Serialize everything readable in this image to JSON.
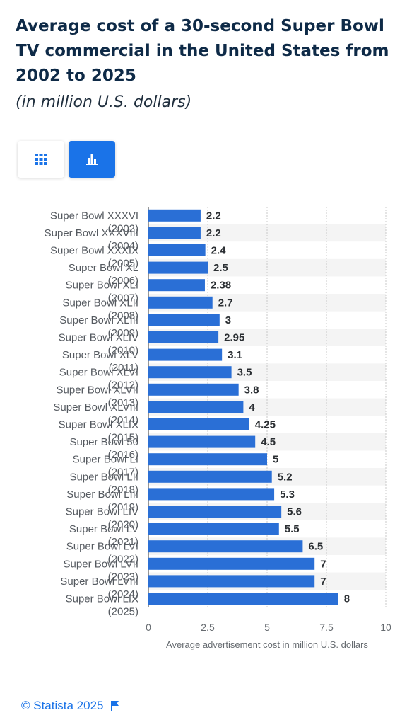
{
  "header": {
    "title": "Average cost of a 30-second Super Bowl TV commercial in the United States from 2002 to 2025",
    "subtitle": "(in million U.S. dollars)"
  },
  "view_toggle": {
    "table_icon": "table-grid-icon",
    "chart_icon": "bar-chart-icon",
    "active": "chart"
  },
  "colors": {
    "bar": "#2a6fd6",
    "accent": "#1a73e8",
    "title": "#0e2a47"
  },
  "footer": {
    "copyright": "© Statista 2025",
    "icon": "flag-icon"
  },
  "chart_data": {
    "type": "bar",
    "orientation": "horizontal",
    "categories": [
      "Super Bowl XXXVI (2002)",
      "Super Bowl XXXVIII (2004)",
      "Super Bowl XXXIX (2005)",
      "Super Bowl XL (2006)",
      "Super Bowl XLI (2007)",
      "Super Bowl XLII (2008)",
      "Super Bowl XLIII (2009)",
      "Super Bowl XLIV (2010)",
      "Super Bowl XLV (2011)",
      "Super Bowl XLVI (2012)",
      "Super Bowl XLVII (2013)",
      "Super Bowl XLVIII (2014)",
      "Super Bowl XLIX (2015)",
      "Super Bowl 50 (2016)",
      "Super Bowl LI (2017)",
      "Super Bowl LII (2018)",
      "Super Bowl LIII (2019)",
      "Super Bowl LIV (2020)",
      "Super Bowl LV (2021)",
      "Super Bowl LVI (2022)",
      "Super Bowl LVII (2023)",
      "Super Bowl LVIII (2024)",
      "Super Bowl LIX (2025)"
    ],
    "values": [
      2.2,
      2.2,
      2.4,
      2.5,
      2.38,
      2.7,
      3,
      2.95,
      3.1,
      3.5,
      3.8,
      4,
      4.25,
      4.5,
      5,
      5.2,
      5.3,
      5.6,
      5.5,
      6.5,
      7,
      7,
      8
    ],
    "value_labels": [
      "2.2",
      "2.2",
      "2.4",
      "2.5",
      "2.38",
      "2.7",
      "3",
      "2.95",
      "3.1",
      "3.5",
      "3.8",
      "4",
      "4.25",
      "4.5",
      "5",
      "5.2",
      "5.3",
      "5.6",
      "5.5",
      "6.5",
      "7",
      "7",
      "8"
    ],
    "xlabel": "Average advertisement cost in million U.S. dollars",
    "ylabel": "",
    "xlim": [
      0,
      10
    ],
    "ticks": [
      0,
      2.5,
      5,
      7.5,
      10
    ],
    "tick_labels": [
      "0",
      "2.5",
      "5",
      "7.5",
      "10"
    ],
    "grid": true,
    "legend": "none"
  }
}
